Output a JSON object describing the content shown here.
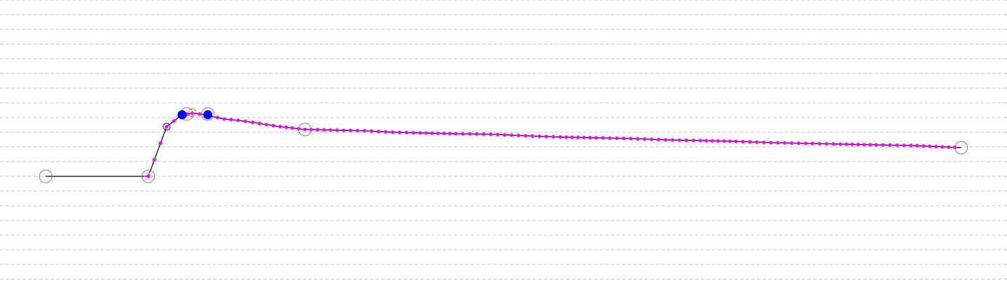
{
  "chart_data": {
    "type": "line",
    "title": "",
    "xlabel": "",
    "ylabel": "",
    "xlim": [
      -5,
      105
    ],
    "ylim": [
      -7.67,
      12
    ],
    "grid": {
      "horizontal": true,
      "vertical": false,
      "step": 1,
      "style": "dashed"
    },
    "colors": {
      "line": "#000000",
      "samples": "#ff00ff",
      "markers": "#808080",
      "selected": "#0000ff",
      "highlight": "#ff2200",
      "grid": "#c0c0c0"
    },
    "line": {
      "x": [
        0,
        11.2,
        13.2,
        14.0,
        14.9,
        16.0,
        16.8,
        17.7,
        18.0,
        19.5,
        21.0,
        22.6,
        24.1,
        25.6,
        28.3,
        31.8,
        34.8,
        37.9,
        40.9,
        44.8,
        48.6,
        52.4,
        56.2,
        60.1,
        63.9,
        67.7,
        71.5,
        75.4,
        79.2,
        83.0,
        86.8,
        90.7,
        94.5,
        100
      ],
      "y": [
        0,
        0,
        3.38,
        3.76,
        4.19,
        4.29,
        4.24,
        4.19,
        4.1,
        3.9,
        3.81,
        3.67,
        3.52,
        3.38,
        3.19,
        3.14,
        3.1,
        3.0,
        2.95,
        2.9,
        2.86,
        2.76,
        2.67,
        2.62,
        2.57,
        2.48,
        2.43,
        2.38,
        2.29,
        2.24,
        2.19,
        2.14,
        2.1,
        1.95
      ]
    },
    "samples_start_x": 11.2,
    "keypoints": [
      {
        "x": 0,
        "y": 0,
        "kind": "open-gray"
      },
      {
        "x": 11.2,
        "y": 0,
        "kind": "open-gray"
      },
      {
        "x": 15.4,
        "y": 4.24,
        "kind": "open-gray"
      },
      {
        "x": 17.7,
        "y": 4.24,
        "kind": "open-gray"
      },
      {
        "x": 28.3,
        "y": 3.19,
        "kind": "open-gray"
      },
      {
        "x": 100,
        "y": 1.95,
        "kind": "open-gray"
      },
      {
        "x": 14.9,
        "y": 4.19,
        "kind": "filled-blue"
      },
      {
        "x": 17.7,
        "y": 4.19,
        "kind": "filled-blue"
      },
      {
        "x": 13.2,
        "y": 3.38,
        "kind": "open-blue"
      },
      {
        "x": 16.0,
        "y": 4.33,
        "kind": "open-red"
      },
      {
        "x": 11.2,
        "y": 0,
        "kind": "open-pink"
      }
    ]
  }
}
